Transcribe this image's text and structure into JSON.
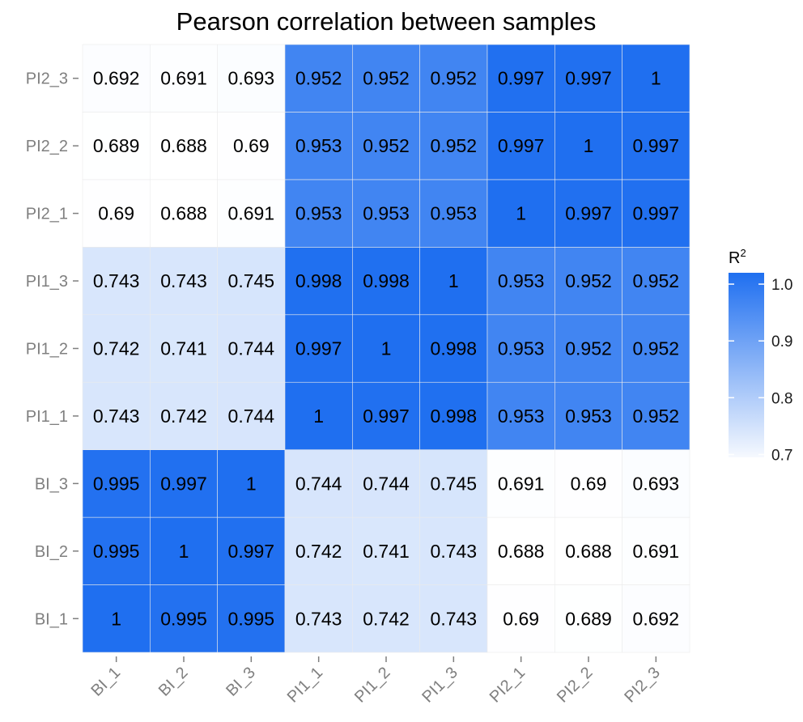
{
  "chart_data": {
    "type": "heatmap",
    "title": "Pearson correlation between samples",
    "x_categories": [
      "BI_1",
      "BI_2",
      "BI_3",
      "PI1_1",
      "PI1_2",
      "PI1_3",
      "PI2_1",
      "PI2_2",
      "PI2_3"
    ],
    "y_categories": [
      "BI_1",
      "BI_2",
      "BI_3",
      "PI1_1",
      "PI1_2",
      "PI1_3",
      "PI2_1",
      "PI2_2",
      "PI2_3"
    ],
    "values": [
      [
        "1",
        "0.995",
        "0.995",
        "0.743",
        "0.742",
        "0.743",
        "0.69",
        "0.689",
        "0.692"
      ],
      [
        "0.995",
        "1",
        "0.997",
        "0.742",
        "0.741",
        "0.743",
        "0.688",
        "0.688",
        "0.691"
      ],
      [
        "0.995",
        "0.997",
        "1",
        "0.744",
        "0.744",
        "0.745",
        "0.691",
        "0.69",
        "0.693"
      ],
      [
        "0.743",
        "0.742",
        "0.744",
        "1",
        "0.997",
        "0.998",
        "0.953",
        "0.953",
        "0.952"
      ],
      [
        "0.742",
        "0.741",
        "0.744",
        "0.997",
        "1",
        "0.998",
        "0.953",
        "0.952",
        "0.952"
      ],
      [
        "0.743",
        "0.743",
        "0.745",
        "0.998",
        "0.998",
        "1",
        "0.953",
        "0.952",
        "0.952"
      ],
      [
        "0.69",
        "0.688",
        "0.691",
        "0.953",
        "0.953",
        "0.953",
        "1",
        "0.997",
        "0.997"
      ],
      [
        "0.689",
        "0.688",
        "0.69",
        "0.953",
        "0.952",
        "0.952",
        "0.997",
        "1",
        "0.997"
      ],
      [
        "0.692",
        "0.691",
        "0.693",
        "0.952",
        "0.952",
        "0.952",
        "0.997",
        "0.997",
        "1"
      ]
    ],
    "color_scale": {
      "min": 0.688,
      "max": 1,
      "low_color": "#ffffff",
      "high_color": "#1f6ff0"
    },
    "legend": {
      "title_main": "R",
      "title_superscript": "2",
      "ticks": [
        "1.0",
        "0.9",
        "0.8",
        "0.7"
      ],
      "tick_values": [
        1.0,
        0.9,
        0.8,
        0.7
      ],
      "placement": "right"
    },
    "grid_color": "#ebebeb"
  }
}
